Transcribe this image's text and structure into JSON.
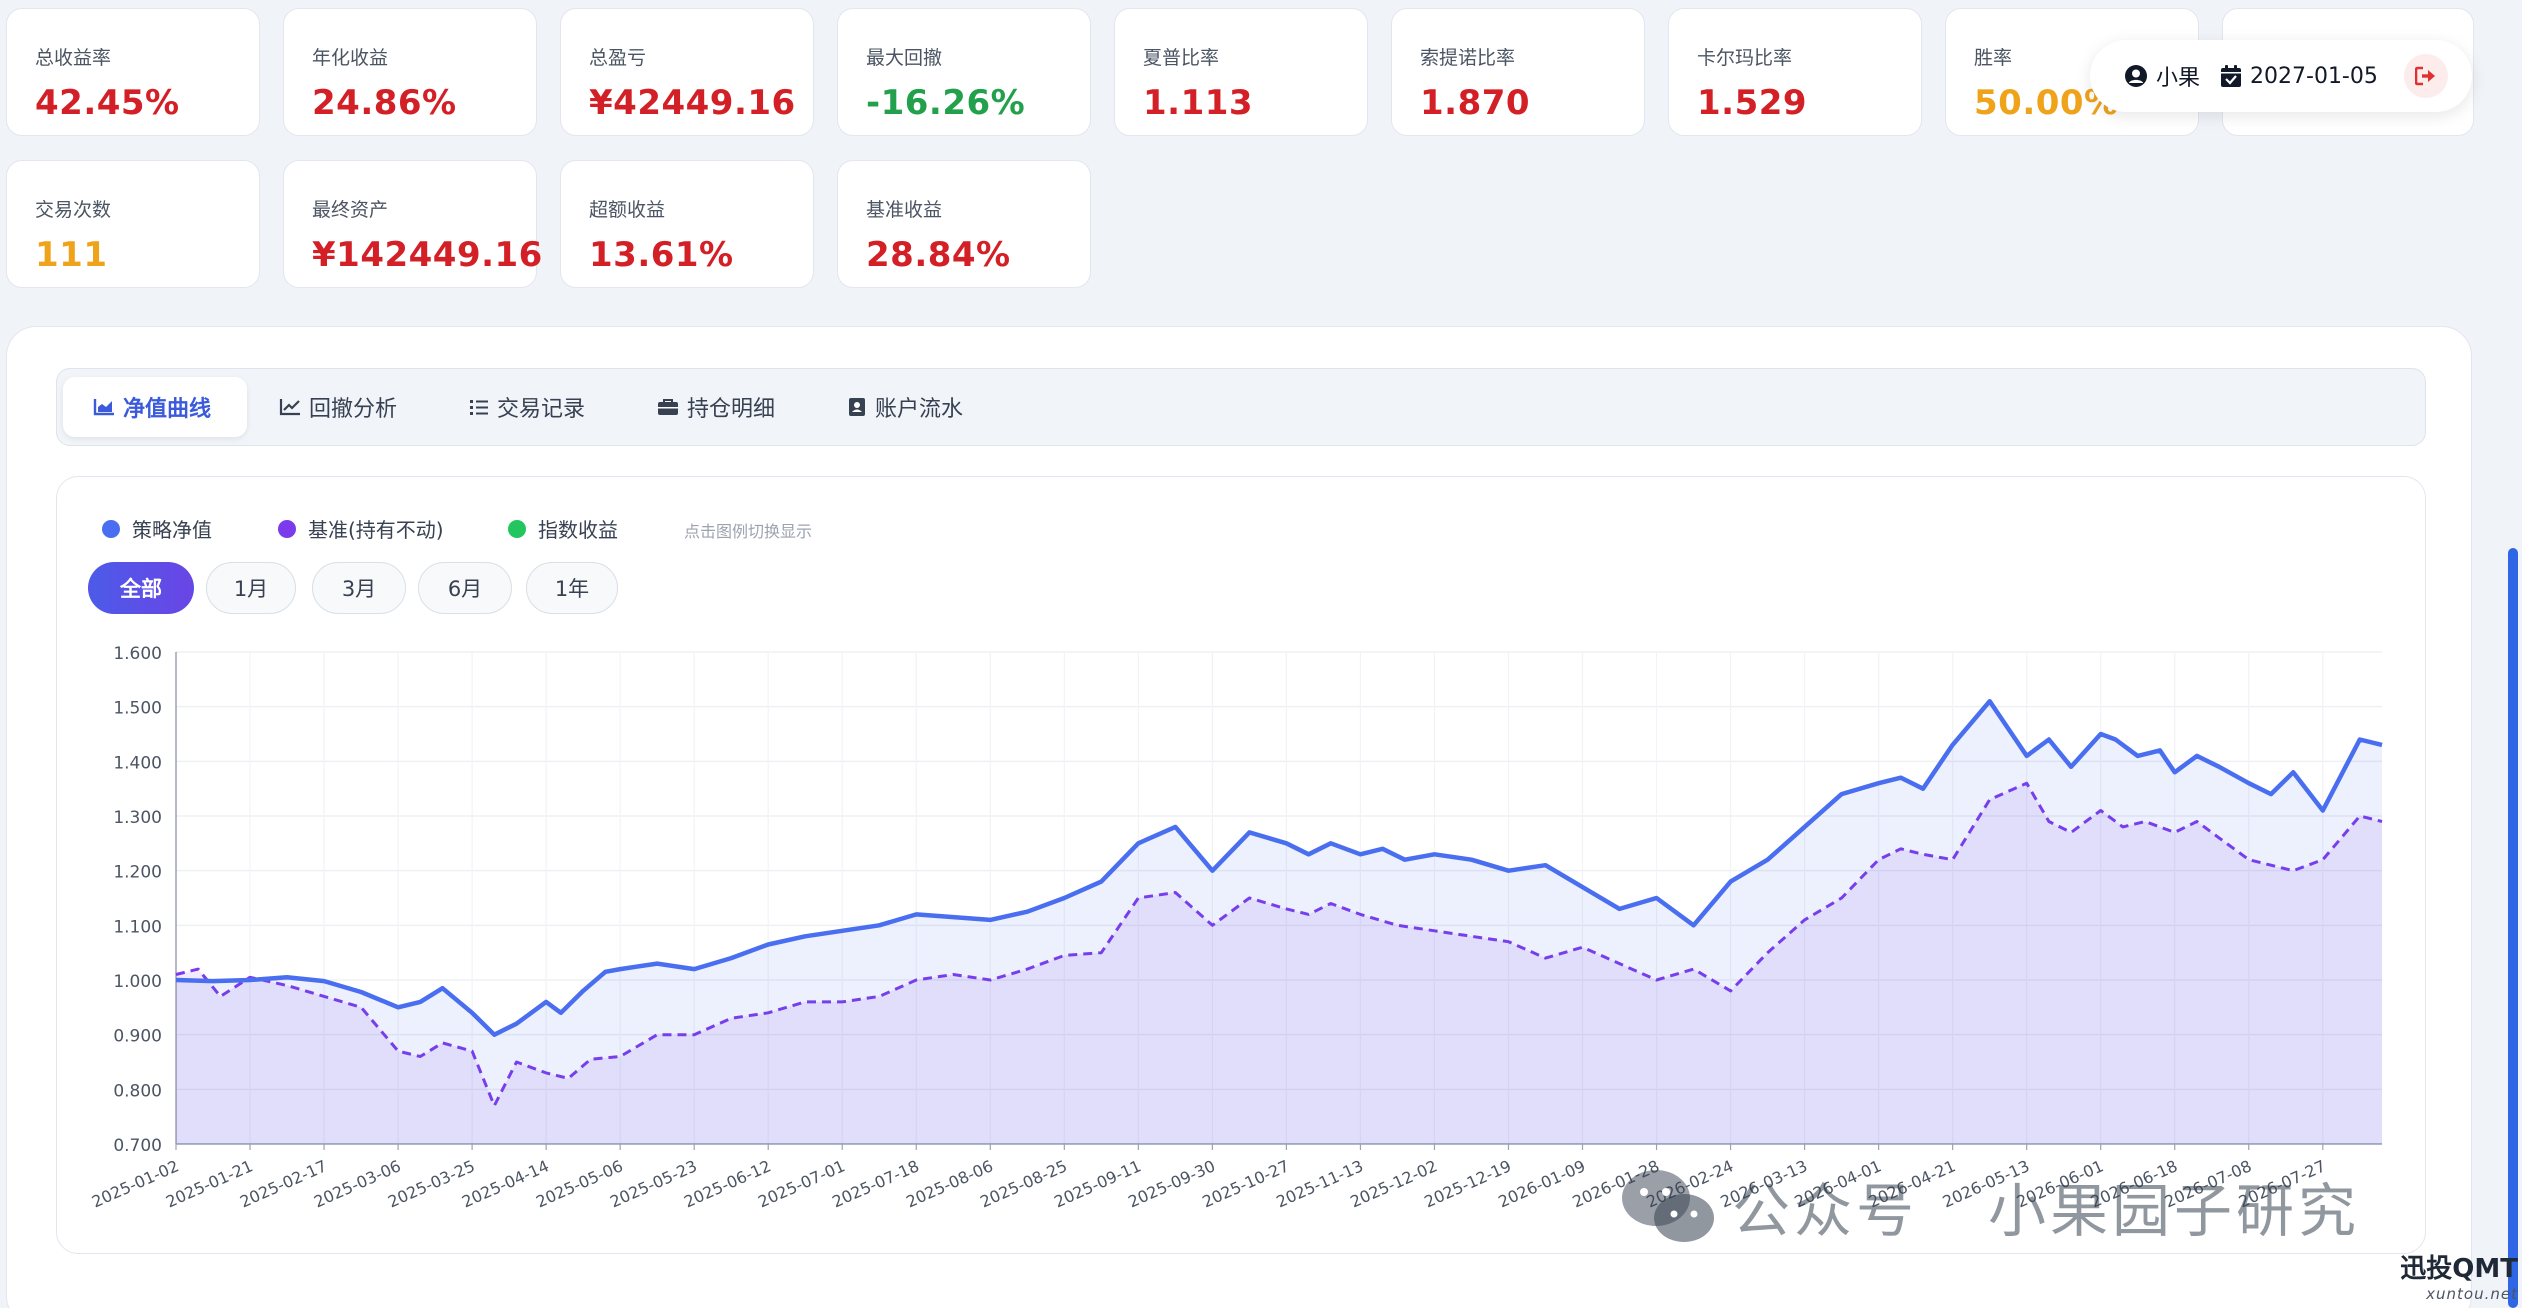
{
  "metrics_row1": [
    {
      "label": "总收益率",
      "value": "42.45%",
      "color": "#d32027"
    },
    {
      "label": "年化收益",
      "value": "24.86%",
      "color": "#d32027"
    },
    {
      "label": "总盈亏",
      "value": "¥42449.16",
      "color": "#d32027"
    },
    {
      "label": "最大回撤",
      "value": "-16.26%",
      "color": "#22a04b"
    },
    {
      "label": "夏普比率",
      "value": "1.113",
      "color": "#d32027"
    },
    {
      "label": "索提诺比率",
      "value": "1.870",
      "color": "#d32027"
    },
    {
      "label": "卡尔玛比率",
      "value": "1.529",
      "color": "#d32027"
    },
    {
      "label": "胜率",
      "value": "50.00%",
      "color": "#eea31b"
    },
    {
      "label": "",
      "value": "",
      "color": "#d32027"
    }
  ],
  "metrics_row2": [
    {
      "label": "交易次数",
      "value": "111",
      "color": "#eea31b"
    },
    {
      "label": "最终资产",
      "value": "¥142449.16",
      "color": "#d32027"
    },
    {
      "label": "超额收益",
      "value": "13.61%",
      "color": "#d32027"
    },
    {
      "label": "基准收益",
      "value": "28.84%",
      "color": "#d32027"
    }
  ],
  "user": {
    "name": "小果",
    "date": "2027-01-05"
  },
  "tabs": [
    {
      "label": "净值曲线",
      "icon": "area-chart-icon",
      "active": true
    },
    {
      "label": "回撤分析",
      "icon": "line-chart-icon",
      "active": false
    },
    {
      "label": "交易记录",
      "icon": "list-icon",
      "active": false
    },
    {
      "label": "持仓明细",
      "icon": "briefcase-icon",
      "active": false
    },
    {
      "label": "账户流水",
      "icon": "contact-book-icon",
      "active": false
    }
  ],
  "legend": [
    {
      "label": "策略净值",
      "color": "#4a6ef0"
    },
    {
      "label": "基准(持有不动)",
      "color": "#7c3aed"
    },
    {
      "label": "指数收益",
      "color": "#22c55e"
    }
  ],
  "legend_hint": "点击图例切换显示",
  "ranges": [
    {
      "label": "全部",
      "active": true
    },
    {
      "label": "1月",
      "active": false
    },
    {
      "label": "3月",
      "active": false
    },
    {
      "label": "6月",
      "active": false
    },
    {
      "label": "1年",
      "active": false
    }
  ],
  "watermark": {
    "left": "公众号",
    "right": "小果园子研究"
  },
  "brand": {
    "name": "迅投QMT",
    "url": "xuntou.net"
  },
  "chart_data": {
    "type": "area",
    "ylim": [
      0.7,
      1.6
    ],
    "yticks": [
      "1.600",
      "1.500",
      "1.400",
      "1.300",
      "1.200",
      "1.100",
      "1.000",
      "0.900",
      "0.800",
      "0.700"
    ],
    "x_tick_labels": [
      "2025-01-02",
      "2025-01-21",
      "2025-02-17",
      "2025-03-06",
      "2025-03-25",
      "2025-04-14",
      "2025-05-06",
      "2025-05-23",
      "2025-06-12",
      "2025-07-01",
      "2025-07-18",
      "2025-08-06",
      "2025-08-25",
      "2025-09-11",
      "2025-09-30",
      "2025-10-27",
      "2025-11-13",
      "2025-12-02",
      "2025-12-19",
      "2026-01-09",
      "2026-01-28",
      "2026-02-24",
      "2026-03-13",
      "2026-04-01",
      "2026-04-21",
      "2026-05-13",
      "2026-06-01",
      "2026-06-18",
      "2026-07-08",
      "2026-07-27"
    ],
    "series": [
      {
        "name": "策略净值",
        "color": "#4a6ef0",
        "style": "solid",
        "x": [
          0,
          0.5,
          1,
          1.5,
          2,
          2.5,
          3,
          3.3,
          3.6,
          4,
          4.3,
          4.6,
          5,
          5.2,
          5.5,
          5.8,
          6,
          6.5,
          7,
          7.5,
          8,
          8.5,
          9,
          9.5,
          10,
          10.5,
          11,
          11.5,
          12,
          12.5,
          13,
          13.5,
          14,
          14.5,
          15,
          15.3,
          15.6,
          16,
          16.3,
          16.6,
          17,
          17.5,
          18,
          18.5,
          19,
          19.5,
          20,
          20.5,
          21,
          21.5,
          22,
          22.5,
          23,
          23.3,
          23.6,
          24,
          24.5,
          25,
          25.3,
          25.6,
          26,
          26.2,
          26.5,
          26.8,
          27,
          27.3,
          27.6,
          28,
          28.3,
          28.6,
          29,
          29.5,
          29.8
        ],
        "values": [
          1.0,
          0.998,
          1.0,
          1.005,
          0.998,
          0.978,
          0.95,
          0.96,
          0.985,
          0.94,
          0.9,
          0.92,
          0.96,
          0.94,
          0.98,
          1.015,
          1.02,
          1.03,
          1.02,
          1.04,
          1.065,
          1.08,
          1.09,
          1.1,
          1.12,
          1.115,
          1.11,
          1.125,
          1.15,
          1.18,
          1.25,
          1.28,
          1.2,
          1.27,
          1.25,
          1.23,
          1.25,
          1.23,
          1.24,
          1.22,
          1.23,
          1.22,
          1.2,
          1.21,
          1.17,
          1.13,
          1.15,
          1.1,
          1.18,
          1.22,
          1.28,
          1.34,
          1.36,
          1.37,
          1.35,
          1.43,
          1.51,
          1.41,
          1.44,
          1.39,
          1.45,
          1.44,
          1.41,
          1.42,
          1.38,
          1.41,
          1.39,
          1.36,
          1.34,
          1.38,
          1.31,
          1.44,
          1.43
        ]
      },
      {
        "name": "基准(持有不动)",
        "color": "#7c3aed",
        "style": "dashed",
        "x": [
          0,
          0.3,
          0.6,
          1,
          1.5,
          2,
          2.5,
          3,
          3.3,
          3.6,
          4,
          4.3,
          4.6,
          5,
          5.3,
          5.6,
          6,
          6.5,
          7,
          7.5,
          8,
          8.5,
          9,
          9.5,
          10,
          10.5,
          11,
          11.5,
          12,
          12.5,
          13,
          13.5,
          14,
          14.5,
          15,
          15.3,
          15.6,
          16,
          16.5,
          17,
          17.5,
          18,
          18.5,
          19,
          19.5,
          20,
          20.5,
          21,
          21.5,
          22,
          22.5,
          23,
          23.3,
          23.6,
          24,
          24.5,
          25,
          25.3,
          25.6,
          26,
          26.3,
          26.6,
          27,
          27.3,
          27.6,
          28,
          28.3,
          28.6,
          29,
          29.5,
          29.8
        ],
        "values": [
          1.01,
          1.02,
          0.97,
          1.005,
          0.99,
          0.97,
          0.95,
          0.87,
          0.86,
          0.885,
          0.87,
          0.77,
          0.85,
          0.83,
          0.82,
          0.855,
          0.86,
          0.9,
          0.9,
          0.93,
          0.94,
          0.96,
          0.96,
          0.97,
          1.0,
          1.01,
          1.0,
          1.02,
          1.045,
          1.05,
          1.15,
          1.16,
          1.1,
          1.15,
          1.13,
          1.12,
          1.14,
          1.12,
          1.1,
          1.09,
          1.08,
          1.07,
          1.04,
          1.06,
          1.03,
          1.0,
          1.02,
          0.98,
          1.05,
          1.11,
          1.15,
          1.22,
          1.24,
          1.23,
          1.22,
          1.33,
          1.36,
          1.29,
          1.27,
          1.31,
          1.28,
          1.29,
          1.27,
          1.29,
          1.26,
          1.22,
          1.21,
          1.2,
          1.22,
          1.3,
          1.29
        ]
      }
    ]
  }
}
